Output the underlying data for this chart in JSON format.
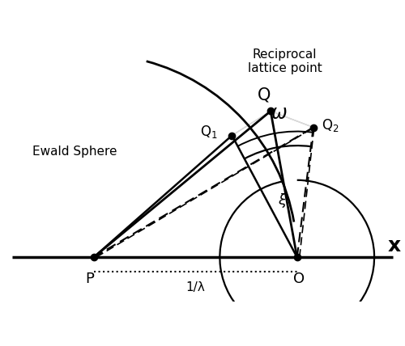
{
  "figsize": [
    5.0,
    4.28
  ],
  "dpi": 100,
  "bg_color": "#ffffff",
  "P": [
    -1.0,
    0.0
  ],
  "O": [
    0.0,
    0.0
  ],
  "Q": [
    -0.13,
    0.72
  ],
  "Q1": [
    -0.32,
    0.6
  ],
  "Q2": [
    0.08,
    0.64
  ],
  "xlim": [
    -1.45,
    0.52
  ],
  "ylim": [
    -0.22,
    1.05
  ],
  "x_axis_label": "x",
  "label_P": "P",
  "label_O": "O",
  "label_Q": "Q",
  "label_Q1": "Q$_1$",
  "label_Q2": "Q$_2$",
  "label_omega": "$\\omega$",
  "label_xi": "$\\xi$",
  "label_1overlambda": "1/λ",
  "label_ewald": "Ewald Sphere",
  "label_rlp": "Reciprocal\nlattice point",
  "text_color": "#000000"
}
